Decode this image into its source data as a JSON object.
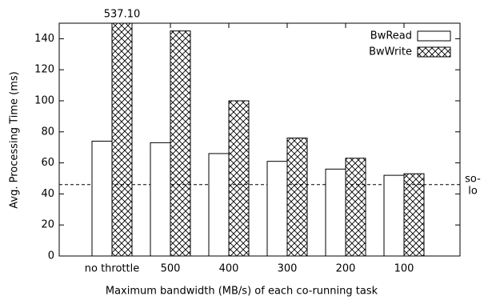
{
  "chart_data": {
    "type": "bar",
    "x_label": "Maximum bandwidth (MB/s) of each co-running task",
    "y_label": "Avg. Processing Time (ms)",
    "categories": [
      "no throttle",
      "500",
      "400",
      "300",
      "200",
      "100"
    ],
    "series": [
      {
        "name": "BwRead",
        "color": "#ffffff",
        "values": [
          74,
          73,
          66,
          61,
          56,
          52
        ]
      },
      {
        "name": "BwWrite",
        "color": "#ffffff",
        "pattern": "crosshatch",
        "values": [
          537.1,
          145,
          100,
          76,
          63,
          53
        ],
        "value_labels": [
          "537.10",
          null,
          null,
          null,
          null,
          null
        ]
      }
    ],
    "ylim": [
      0,
      150
    ],
    "yticks": [
      0,
      20,
      40,
      60,
      80,
      100,
      120,
      140
    ],
    "grid": false,
    "legend": "top-right",
    "reference_line": {
      "value": 46,
      "label": [
        "so-",
        "lo"
      ]
    }
  }
}
